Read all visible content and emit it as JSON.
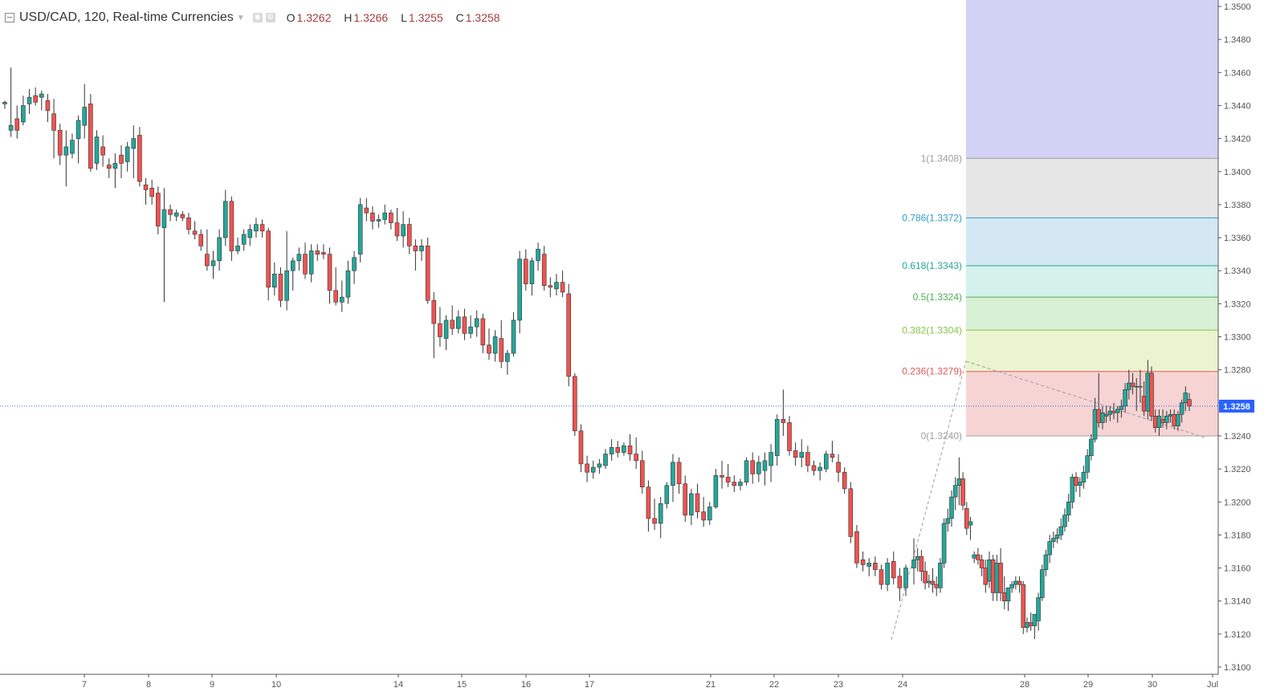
{
  "header": {
    "symbol": "USD/CAD, 120, Real-time Currencies",
    "open_label": "O",
    "open_value": "1.3262",
    "high_label": "H",
    "high_value": "1.3266",
    "low_label": "L",
    "low_value": "1.3255",
    "close_label": "C",
    "close_value": "1.3258",
    "icons": [
      "collapse-icon",
      "caret-down-icon",
      "eye-icon",
      "settings-icon"
    ]
  },
  "colors": {
    "up": "#26a69a",
    "down": "#ef5350",
    "wick": "#333333",
    "last_price_bg": "#2962ff",
    "axis_text": "#555555"
  },
  "price_axis": {
    "labels": [
      "1.3500",
      "1.3480",
      "1.3460",
      "1.3440",
      "1.3420",
      "1.3400",
      "1.3380",
      "1.3360",
      "1.3340",
      "1.3320",
      "1.3300",
      "1.3280",
      "1.3260",
      "1.3240",
      "1.3220",
      "1.3200",
      "1.3180",
      "1.3160",
      "1.3140",
      "1.3120",
      "1.3100"
    ],
    "last_price": "1.3258"
  },
  "time_axis": {
    "labels": [
      "7",
      "8",
      "9",
      "10",
      "14",
      "15",
      "16",
      "17",
      "21",
      "22",
      "23",
      "24",
      "28",
      "29",
      "30",
      "Jul"
    ]
  },
  "fibonacci": {
    "levels": [
      {
        "label": "1(1.3408)",
        "price": 1.3408,
        "color": "#9e9e9e",
        "fill": "#e6e6e6"
      },
      {
        "label": "0.786(1.3372)",
        "price": 1.3372,
        "color": "#2e9cc4",
        "fill": "#d3e8f3"
      },
      {
        "label": "0.618(1.3343)",
        "price": 1.3343,
        "color": "#26a69a",
        "fill": "#d4f1ec"
      },
      {
        "label": "0.5(1.3324)",
        "price": 1.3324,
        "color": "#4caf50",
        "fill": "#d8f0d5"
      },
      {
        "label": "0.382(1.3304)",
        "price": 1.3304,
        "color": "#8bc34a",
        "fill": "#eaf4d0"
      },
      {
        "label": "0.236(1.3279)",
        "price": 1.3279,
        "color": "#e05a5a",
        "fill": "#f7d4d4"
      },
      {
        "label": "0(1.3240)",
        "price": 1.324,
        "color": "#9e9e9e",
        "fill": null
      }
    ],
    "top_zone_fill": "#d2d2f5"
  },
  "chart_data": {
    "type": "candlestick",
    "y_range": [
      1.3096,
      1.3502
    ],
    "candles": [
      [
        1.3441,
        1.3443,
        1.3438,
        1.3442
      ],
      [
        1.3425,
        1.3463,
        1.3421,
        1.3428
      ],
      [
        1.3432,
        1.344,
        1.342,
        1.3425
      ],
      [
        1.343,
        1.3446,
        1.3428,
        1.344
      ],
      [
        1.3441,
        1.345,
        1.3435,
        1.3445
      ],
      [
        1.3446,
        1.3451,
        1.344,
        1.3442
      ],
      [
        1.3445,
        1.3449,
        1.3437,
        1.3447
      ],
      [
        1.3443,
        1.3447,
        1.343,
        1.3437
      ],
      [
        1.3435,
        1.3444,
        1.3408,
        1.3425
      ],
      [
        1.3425,
        1.3429,
        1.3404,
        1.341
      ],
      [
        1.341,
        1.3425,
        1.3391,
        1.3415
      ],
      [
        1.3411,
        1.3423,
        1.3408,
        1.3419
      ],
      [
        1.342,
        1.3434,
        1.3405,
        1.3431
      ],
      [
        1.3428,
        1.3453,
        1.342,
        1.3439
      ],
      [
        1.3441,
        1.3447,
        1.34,
        1.3402
      ],
      [
        1.3405,
        1.3425,
        1.3401,
        1.3421
      ],
      [
        1.3415,
        1.3422,
        1.3403,
        1.341
      ],
      [
        1.3404,
        1.3408,
        1.3396,
        1.3402
      ],
      [
        1.3402,
        1.3411,
        1.339,
        1.3405
      ],
      [
        1.341,
        1.3416,
        1.3396,
        1.3405
      ],
      [
        1.3406,
        1.3418,
        1.34,
        1.3415
      ],
      [
        1.3414,
        1.3428,
        1.3396,
        1.342
      ],
      [
        1.3422,
        1.3427,
        1.3391,
        1.3394
      ],
      [
        1.3392,
        1.3396,
        1.338,
        1.3389
      ],
      [
        1.339,
        1.3395,
        1.338,
        1.3385
      ],
      [
        1.3387,
        1.3391,
        1.3362,
        1.3367
      ],
      [
        1.3366,
        1.339,
        1.3321,
        1.3377
      ],
      [
        1.3377,
        1.338,
        1.337,
        1.3374
      ],
      [
        1.3373,
        1.3377,
        1.337,
        1.3375
      ],
      [
        1.3374,
        1.3376,
        1.337,
        1.3372
      ],
      [
        1.3372,
        1.3375,
        1.3362,
        1.3365
      ],
      [
        1.3364,
        1.337,
        1.3359,
        1.3362
      ],
      [
        1.3362,
        1.3365,
        1.3352,
        1.3355
      ],
      [
        1.335,
        1.3365,
        1.334,
        1.3343
      ],
      [
        1.3343,
        1.3352,
        1.3335,
        1.3346
      ],
      [
        1.3346,
        1.3365,
        1.334,
        1.336
      ],
      [
        1.336,
        1.3389,
        1.3355,
        1.3382
      ],
      [
        1.3382,
        1.3385,
        1.3346,
        1.3352
      ],
      [
        1.3352,
        1.336,
        1.335,
        1.3355
      ],
      [
        1.3356,
        1.3365,
        1.3352,
        1.3362
      ],
      [
        1.336,
        1.3368,
        1.3355,
        1.3365
      ],
      [
        1.3364,
        1.3372,
        1.336,
        1.3368
      ],
      [
        1.3368,
        1.3371,
        1.336,
        1.3364
      ],
      [
        1.3364,
        1.3366,
        1.3322,
        1.333
      ],
      [
        1.333,
        1.3345,
        1.3325,
        1.3338
      ],
      [
        1.3338,
        1.3342,
        1.3318,
        1.3322
      ],
      [
        1.3322,
        1.3364,
        1.3316,
        1.334
      ],
      [
        1.334,
        1.3348,
        1.3328,
        1.3346
      ],
      [
        1.3346,
        1.3354,
        1.334,
        1.335
      ],
      [
        1.335,
        1.3357,
        1.3335,
        1.3338
      ],
      [
        1.3338,
        1.3356,
        1.3333,
        1.3352
      ],
      [
        1.3352,
        1.3356,
        1.3346,
        1.335
      ],
      [
        1.3351,
        1.3356,
        1.3347,
        1.335
      ],
      [
        1.335,
        1.3354,
        1.332,
        1.3328
      ],
      [
        1.3328,
        1.3342,
        1.3319,
        1.3321
      ],
      [
        1.3321,
        1.3334,
        1.3315,
        1.3324
      ],
      [
        1.3324,
        1.3346,
        1.332,
        1.334
      ],
      [
        1.334,
        1.3352,
        1.3332,
        1.3348
      ],
      [
        1.335,
        1.3384,
        1.3345,
        1.338
      ],
      [
        1.3378,
        1.3384,
        1.337,
        1.3375
      ],
      [
        1.3375,
        1.3379,
        1.3365,
        1.337
      ],
      [
        1.337,
        1.3374,
        1.3366,
        1.3371
      ],
      [
        1.3371,
        1.338,
        1.3368,
        1.3375
      ],
      [
        1.3375,
        1.3377,
        1.3365,
        1.3369
      ],
      [
        1.3369,
        1.3378,
        1.3358,
        1.3361
      ],
      [
        1.3361,
        1.3376,
        1.3354,
        1.3368
      ],
      [
        1.3368,
        1.3372,
        1.335,
        1.3355
      ],
      [
        1.3355,
        1.3359,
        1.334,
        1.3352
      ],
      [
        1.3352,
        1.3359,
        1.3346,
        1.3355
      ],
      [
        1.3355,
        1.336,
        1.332,
        1.3322
      ],
      [
        1.3322,
        1.3327,
        1.3287,
        1.3308
      ],
      [
        1.3308,
        1.3318,
        1.3294,
        1.33
      ],
      [
        1.3299,
        1.3313,
        1.3292,
        1.331
      ],
      [
        1.331,
        1.3319,
        1.3301,
        1.3305
      ],
      [
        1.3305,
        1.3316,
        1.3302,
        1.3312
      ],
      [
        1.3312,
        1.3317,
        1.3298,
        1.3302
      ],
      [
        1.3302,
        1.3313,
        1.3299,
        1.3306
      ],
      [
        1.3306,
        1.3316,
        1.33,
        1.3311
      ],
      [
        1.3311,
        1.3314,
        1.329,
        1.3295
      ],
      [
        1.3295,
        1.3305,
        1.3286,
        1.329
      ],
      [
        1.329,
        1.3304,
        1.3285,
        1.33
      ],
      [
        1.3299,
        1.331,
        1.3281,
        1.3285
      ],
      [
        1.3285,
        1.3292,
        1.3277,
        1.329
      ],
      [
        1.329,
        1.3315,
        1.3288,
        1.331
      ],
      [
        1.331,
        1.3352,
        1.3302,
        1.3347
      ],
      [
        1.3347,
        1.3353,
        1.3328,
        1.3332
      ],
      [
        1.3332,
        1.3348,
        1.3325,
        1.3346
      ],
      [
        1.3346,
        1.3357,
        1.334,
        1.3353
      ],
      [
        1.335,
        1.3355,
        1.3328,
        1.3331
      ],
      [
        1.3331,
        1.3336,
        1.3324,
        1.333
      ],
      [
        1.3329,
        1.3338,
        1.3325,
        1.3333
      ],
      [
        1.3333,
        1.334,
        1.3324,
        1.3327
      ],
      [
        1.3326,
        1.3332,
        1.327,
        1.3276
      ],
      [
        1.3276,
        1.3278,
        1.324,
        1.3243
      ],
      [
        1.3243,
        1.3247,
        1.3218,
        1.3223
      ],
      [
        1.3223,
        1.3228,
        1.3212,
        1.3218
      ],
      [
        1.3218,
        1.3225,
        1.3214,
        1.3221
      ],
      [
        1.3221,
        1.3226,
        1.3217,
        1.3223
      ],
      [
        1.3222,
        1.3232,
        1.322,
        1.3229
      ],
      [
        1.3229,
        1.3238,
        1.3225,
        1.3233
      ],
      [
        1.3233,
        1.3237,
        1.3227,
        1.323
      ],
      [
        1.323,
        1.3236,
        1.3228,
        1.3234
      ],
      [
        1.3234,
        1.3241,
        1.3225,
        1.3229
      ],
      [
        1.3229,
        1.3239,
        1.322,
        1.3225
      ],
      [
        1.3225,
        1.3231,
        1.3205,
        1.3209
      ],
      [
        1.3209,
        1.3213,
        1.3182,
        1.319
      ],
      [
        1.319,
        1.3202,
        1.3183,
        1.3187
      ],
      [
        1.3187,
        1.3203,
        1.3178,
        1.3199
      ],
      [
        1.3199,
        1.3212,
        1.3196,
        1.321
      ],
      [
        1.321,
        1.3229,
        1.32,
        1.3224
      ],
      [
        1.3224,
        1.3227,
        1.3205,
        1.3211
      ],
      [
        1.3211,
        1.3216,
        1.3188,
        1.3192
      ],
      [
        1.3192,
        1.3208,
        1.3186,
        1.3205
      ],
      [
        1.3205,
        1.3211,
        1.319,
        1.3194
      ],
      [
        1.3194,
        1.3203,
        1.3185,
        1.3189
      ],
      [
        1.3189,
        1.32,
        1.3186,
        1.3197
      ],
      [
        1.3197,
        1.322,
        1.3196,
        1.3216
      ],
      [
        1.3216,
        1.3225,
        1.3208,
        1.3215
      ],
      [
        1.3215,
        1.3223,
        1.3209,
        1.3212
      ],
      [
        1.3212,
        1.3216,
        1.3206,
        1.321
      ],
      [
        1.321,
        1.3214,
        1.3207,
        1.3212
      ],
      [
        1.3212,
        1.3227,
        1.321,
        1.3225
      ],
      [
        1.3225,
        1.323,
        1.3211,
        1.3217
      ],
      [
        1.3217,
        1.3228,
        1.3212,
        1.3224
      ],
      [
        1.3219,
        1.323,
        1.321,
        1.3225
      ],
      [
        1.3222,
        1.3235,
        1.3212,
        1.323
      ],
      [
        1.3228,
        1.3253,
        1.3222,
        1.325
      ],
      [
        1.325,
        1.3268,
        1.324,
        1.3248
      ],
      [
        1.3248,
        1.3252,
        1.3228,
        1.3231
      ],
      [
        1.3231,
        1.3236,
        1.3222,
        1.3227
      ],
      [
        1.3227,
        1.3238,
        1.3221,
        1.323
      ],
      [
        1.323,
        1.3234,
        1.3218,
        1.3222
      ],
      [
        1.3222,
        1.3225,
        1.3216,
        1.3219
      ],
      [
        1.3219,
        1.3224,
        1.3213,
        1.3221
      ],
      [
        1.322,
        1.3231,
        1.3218,
        1.3229
      ],
      [
        1.3229,
        1.3237,
        1.3224,
        1.3227
      ],
      [
        1.3224,
        1.3229,
        1.3212,
        1.3218
      ],
      [
        1.3218,
        1.3221,
        1.3205,
        1.3208
      ],
      [
        1.3208,
        1.3212,
        1.3175,
        1.3179
      ],
      [
        1.3182,
        1.3186,
        1.316,
        1.3163
      ],
      [
        1.3165,
        1.317,
        1.3158,
        1.3162
      ],
      [
        1.3161,
        1.3166,
        1.3155,
        1.3163
      ],
      [
        1.3163,
        1.3167,
        1.3155,
        1.3159
      ],
      [
        1.3159,
        1.3162,
        1.3147,
        1.315
      ],
      [
        1.315,
        1.3166,
        1.3146,
        1.3163
      ],
      [
        1.3164,
        1.317,
        1.315,
        1.3154
      ],
      [
        1.3155,
        1.316,
        1.314,
        1.3148
      ],
      [
        1.3148,
        1.3162,
        1.3143,
        1.316
      ],
      [
        1.316,
        1.3178,
        1.315,
        1.3165
      ],
      [
        1.3165,
        1.3172,
        1.3158,
        1.3167
      ],
      [
        1.3167,
        1.3171,
        1.3152,
        1.3158
      ],
      [
        1.3158,
        1.3164,
        1.3147,
        1.3151
      ],
      [
        1.3151,
        1.3156,
        1.3148,
        1.3152
      ],
      [
        1.3152,
        1.316,
        1.3145,
        1.315
      ],
      [
        1.315,
        1.3155,
        1.3143,
        1.3148
      ],
      [
        1.3148,
        1.3166,
        1.3145,
        1.3163
      ],
      [
        1.3163,
        1.319,
        1.316,
        1.3187
      ],
      [
        1.3187,
        1.3196,
        1.3182,
        1.319
      ],
      [
        1.319,
        1.3207,
        1.3185,
        1.3203
      ],
      [
        1.3203,
        1.3215,
        1.3195,
        1.321
      ],
      [
        1.321,
        1.3227,
        1.3198,
        1.3214
      ],
      [
        1.3214,
        1.3218,
        1.3195,
        1.3198
      ],
      [
        1.3196,
        1.32,
        1.318,
        1.3184
      ],
      [
        1.3186,
        1.3191,
        1.3177,
        1.3188
      ],
      [
        1.3166,
        1.317,
        1.3163,
        1.3168
      ],
      [
        1.3168,
        1.3172,
        1.3162,
        1.3165
      ],
      [
        1.3165,
        1.3168,
        1.3155,
        1.316
      ],
      [
        1.316,
        1.3165,
        1.3145,
        1.315
      ],
      [
        1.3152,
        1.317,
        1.3148,
        1.3165
      ],
      [
        1.3165,
        1.3168,
        1.314,
        1.3145
      ],
      [
        1.3145,
        1.3168,
        1.314,
        1.3163
      ],
      [
        1.3163,
        1.3172,
        1.314,
        1.3145
      ],
      [
        1.3145,
        1.3155,
        1.3135,
        1.314
      ],
      [
        1.314,
        1.3145,
        1.3134,
        1.3148
      ],
      [
        1.3148,
        1.3152,
        1.3145,
        1.315
      ],
      [
        1.315,
        1.3155,
        1.3147,
        1.3152
      ],
      [
        1.3152,
        1.3155,
        1.3145,
        1.315
      ],
      [
        1.315,
        1.3152,
        1.312,
        1.3124
      ],
      [
        1.3124,
        1.313,
        1.3121,
        1.3127
      ],
      [
        1.3127,
        1.3133,
        1.3122,
        1.3125
      ],
      [
        1.3125,
        1.3129,
        1.3117,
        1.3132
      ],
      [
        1.3128,
        1.3145,
        1.3122,
        1.3142
      ],
      [
        1.3142,
        1.3162,
        1.314,
        1.3159
      ],
      [
        1.3159,
        1.3171,
        1.3155,
        1.3168
      ],
      [
        1.3168,
        1.318,
        1.3163,
        1.3176
      ],
      [
        1.3176,
        1.3182,
        1.3172,
        1.3178
      ],
      [
        1.3178,
        1.3184,
        1.3175,
        1.318
      ],
      [
        1.318,
        1.319,
        1.3177,
        1.3185
      ],
      [
        1.3185,
        1.3196,
        1.3182,
        1.3192
      ],
      [
        1.3192,
        1.3205,
        1.3188,
        1.32
      ],
      [
        1.32,
        1.3217,
        1.3196,
        1.3215
      ],
      [
        1.3215,
        1.3218,
        1.3206,
        1.321
      ],
      [
        1.321,
        1.3215,
        1.3203,
        1.3212
      ],
      [
        1.3212,
        1.3222,
        1.3208,
        1.3218
      ],
      [
        1.3218,
        1.3232,
        1.3214,
        1.3228
      ],
      [
        1.3228,
        1.3241,
        1.3225,
        1.3238
      ],
      [
        1.3238,
        1.3263,
        1.3236,
        1.3256
      ],
      [
        1.3256,
        1.3278,
        1.3245,
        1.3248
      ],
      [
        1.3248,
        1.3258,
        1.3244,
        1.3254
      ],
      [
        1.3252,
        1.3258,
        1.3248,
        1.3253
      ],
      [
        1.3253,
        1.3258,
        1.3249,
        1.3255
      ],
      [
        1.3255,
        1.326,
        1.325,
        1.3254
      ],
      [
        1.3254,
        1.3258,
        1.3248,
        1.3256
      ],
      [
        1.3256,
        1.3262,
        1.3251,
        1.3258
      ],
      [
        1.3258,
        1.3272,
        1.3254,
        1.3268
      ],
      [
        1.3268,
        1.328,
        1.3262,
        1.3272
      ],
      [
        1.3272,
        1.3278,
        1.3265,
        1.327
      ],
      [
        1.327,
        1.3275,
        1.3255,
        1.327
      ],
      [
        1.327,
        1.328,
        1.326,
        1.327
      ],
      [
        1.3264,
        1.3273,
        1.3252,
        1.3255
      ],
      [
        1.3255,
        1.3286,
        1.325,
        1.3278
      ],
      [
        1.3278,
        1.3282,
        1.3249,
        1.3252
      ],
      [
        1.3252,
        1.3256,
        1.3242,
        1.3245
      ],
      [
        1.3245,
        1.3256,
        1.324,
        1.3252
      ],
      [
        1.325,
        1.3256,
        1.3245,
        1.3248
      ],
      [
        1.3248,
        1.3255,
        1.3244,
        1.3252
      ],
      [
        1.3252,
        1.3256,
        1.3248,
        1.3253
      ],
      [
        1.3253,
        1.3256,
        1.3244,
        1.3246
      ],
      [
        1.3246,
        1.3255,
        1.3243,
        1.3253
      ],
      [
        1.3253,
        1.3262,
        1.3248,
        1.326
      ],
      [
        1.326,
        1.327,
        1.3255,
        1.3266
      ],
      [
        1.3262,
        1.3266,
        1.3255,
        1.3258
      ]
    ]
  }
}
